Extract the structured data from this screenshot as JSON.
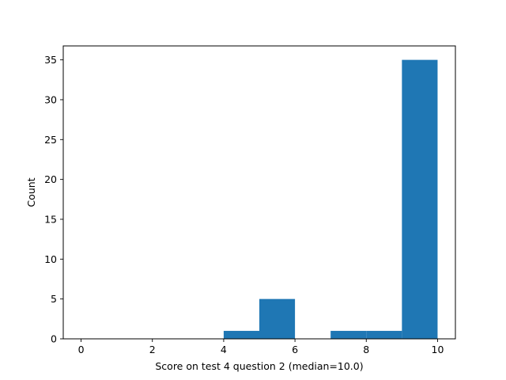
{
  "chart_data": {
    "type": "bar",
    "title": "",
    "xlabel": "Score on test 4 question 2 (median=10.0)",
    "ylabel": "Count",
    "xlim": [
      -0.5,
      10.5
    ],
    "ylim": [
      0,
      36.75
    ],
    "xticks": [
      0,
      2,
      4,
      6,
      8,
      10
    ],
    "yticks": [
      0,
      5,
      10,
      15,
      20,
      25,
      30,
      35
    ],
    "bins": [
      {
        "x0": 0,
        "x1": 1,
        "count": 0
      },
      {
        "x0": 1,
        "x1": 2,
        "count": 0
      },
      {
        "x0": 2,
        "x1": 3,
        "count": 0
      },
      {
        "x0": 3,
        "x1": 4,
        "count": 0
      },
      {
        "x0": 4,
        "x1": 5,
        "count": 1
      },
      {
        "x0": 5,
        "x1": 6,
        "count": 5
      },
      {
        "x0": 6,
        "x1": 7,
        "count": 0
      },
      {
        "x0": 7,
        "x1": 8,
        "count": 1
      },
      {
        "x0": 8,
        "x1": 9,
        "count": 1
      },
      {
        "x0": 9,
        "x1": 10,
        "count": 35
      }
    ],
    "bar_color": "#1f77b4",
    "grid": false,
    "legend": "none"
  }
}
